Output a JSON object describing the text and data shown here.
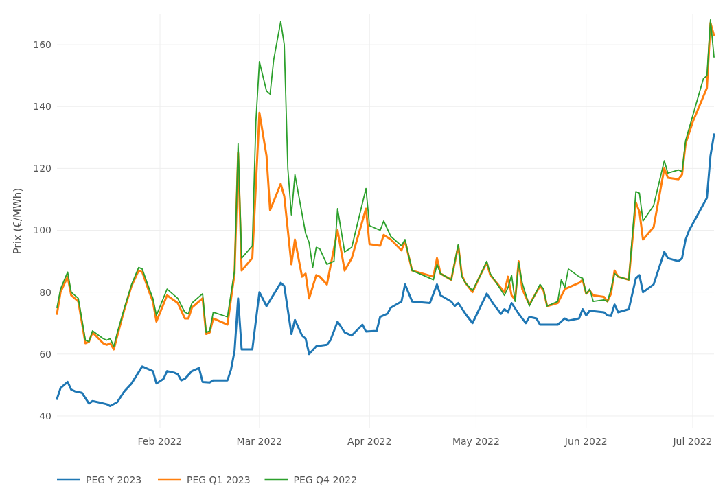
{
  "chart_data": {
    "type": "line",
    "ylabel": "Prix (€/MWh)",
    "xlim": [
      "2022-01-03",
      "2022-07-07"
    ],
    "ylim": [
      36,
      170
    ],
    "xticks": [
      {
        "value": "2022-02-01",
        "label": "Feb 2022"
      },
      {
        "value": "2022-03-01",
        "label": "Mar 2022"
      },
      {
        "value": "2022-04-01",
        "label": "Apr 2022"
      },
      {
        "value": "2022-05-01",
        "label": "May 2022"
      },
      {
        "value": "2022-06-01",
        "label": "Jun 2022"
      },
      {
        "value": "2022-07-01",
        "label": "Jul 2022"
      }
    ],
    "yticks": [
      40,
      60,
      80,
      100,
      120,
      140,
      160
    ],
    "grid": true,
    "legend": "bottom",
    "line_style": "solid",
    "marker": "none",
    "series": [
      {
        "name": "PEG Y 2023",
        "color": "#1f77b4",
        "x": [
          "2022-01-03",
          "2022-01-04",
          "2022-01-06",
          "2022-01-07",
          "2022-01-08",
          "2022-01-10",
          "2022-01-12",
          "2022-01-13",
          "2022-01-15",
          "2022-01-17",
          "2022-01-18",
          "2022-01-20",
          "2022-01-22",
          "2022-01-24",
          "2022-01-27",
          "2022-01-29",
          "2022-01-30",
          "2022-01-31",
          "2022-02-02",
          "2022-02-03",
          "2022-02-05",
          "2022-02-06",
          "2022-02-07",
          "2022-02-08",
          "2022-02-10",
          "2022-02-12",
          "2022-02-13",
          "2022-02-15",
          "2022-02-16",
          "2022-02-20",
          "2022-02-21",
          "2022-02-22",
          "2022-02-23",
          "2022-02-24",
          "2022-02-27",
          "2022-03-01",
          "2022-03-03",
          "2022-03-07",
          "2022-03-08",
          "2022-03-10",
          "2022-03-11",
          "2022-03-13",
          "2022-03-14",
          "2022-03-15",
          "2022-03-17",
          "2022-03-20",
          "2022-03-21",
          "2022-03-23",
          "2022-03-25",
          "2022-03-27",
          "2022-03-30",
          "2022-03-31",
          "2022-04-03",
          "2022-04-04",
          "2022-04-06",
          "2022-04-07",
          "2022-04-10",
          "2022-04-11",
          "2022-04-13",
          "2022-04-18",
          "2022-04-20",
          "2022-04-21",
          "2022-04-24",
          "2022-04-25",
          "2022-04-26",
          "2022-04-28",
          "2022-04-30",
          "2022-05-04",
          "2022-05-06",
          "2022-05-08",
          "2022-05-09",
          "2022-05-10",
          "2022-05-11",
          "2022-05-13",
          "2022-05-15",
          "2022-05-16",
          "2022-05-18",
          "2022-05-19",
          "2022-05-24",
          "2022-05-26",
          "2022-05-27",
          "2022-05-30",
          "2022-05-31",
          "2022-06-01",
          "2022-06-02",
          "2022-06-06",
          "2022-06-07",
          "2022-06-08",
          "2022-06-09",
          "2022-06-10",
          "2022-06-13",
          "2022-06-15",
          "2022-06-16",
          "2022-06-17",
          "2022-06-20",
          "2022-06-23",
          "2022-06-24",
          "2022-06-27",
          "2022-06-28",
          "2022-06-29",
          "2022-06-30",
          "2022-07-05",
          "2022-07-06",
          "2022-07-07"
        ],
        "values": [
          45.5,
          49,
          51,
          48.5,
          48,
          47.5,
          44,
          44.8,
          44.3,
          43.8,
          43.2,
          44.5,
          48,
          50.5,
          56,
          55,
          54.5,
          50.5,
          52,
          54.5,
          54,
          53.5,
          51.5,
          52,
          54.5,
          55.5,
          51,
          50.8,
          51.5,
          51.5,
          55,
          61,
          78,
          61.5,
          61.5,
          80,
          75.5,
          83,
          82,
          66.5,
          71,
          66,
          65,
          60,
          62.5,
          63,
          64.5,
          70.5,
          67,
          66,
          69.5,
          67.3,
          67.5,
          72,
          73,
          75,
          77,
          82.5,
          77,
          76.5,
          82.5,
          79,
          77,
          75.5,
          76.5,
          73,
          70,
          79.5,
          76,
          73,
          74.5,
          73.5,
          76.5,
          73,
          70,
          72,
          71.5,
          69.5,
          69.5,
          71.5,
          70.8,
          71.5,
          74.5,
          72.5,
          74,
          73.5,
          72.5,
          72.3,
          76,
          73.5,
          74.5,
          84.5,
          85.5,
          80,
          82.5,
          93,
          91,
          90,
          91,
          97,
          100,
          110.5,
          124,
          131
        ]
      },
      {
        "name": "PEG Q1 2023",
        "color": "#ff7f0e",
        "x": [
          "2022-01-03",
          "2022-01-04",
          "2022-01-06",
          "2022-01-07",
          "2022-01-09",
          "2022-01-11",
          "2022-01-12",
          "2022-01-13",
          "2022-01-16",
          "2022-01-17",
          "2022-01-18",
          "2022-01-19",
          "2022-01-20",
          "2022-01-22",
          "2022-01-24",
          "2022-01-26",
          "2022-01-27",
          "2022-01-29",
          "2022-01-30",
          "2022-01-31",
          "2022-02-03",
          "2022-02-06",
          "2022-02-08",
          "2022-02-09",
          "2022-02-10",
          "2022-02-13",
          "2022-02-14",
          "2022-02-15",
          "2022-02-16",
          "2022-02-20",
          "2022-02-22",
          "2022-02-23",
          "2022-02-24",
          "2022-02-27",
          "2022-03-01",
          "2022-03-03",
          "2022-03-04",
          "2022-03-07",
          "2022-03-08",
          "2022-03-10",
          "2022-03-11",
          "2022-03-13",
          "2022-03-14",
          "2022-03-15",
          "2022-03-17",
          "2022-03-18",
          "2022-03-20",
          "2022-03-23",
          "2022-03-25",
          "2022-03-27",
          "2022-03-31",
          "2022-04-01",
          "2022-04-04",
          "2022-04-05",
          "2022-04-07",
          "2022-04-10",
          "2022-04-11",
          "2022-04-13",
          "2022-04-19",
          "2022-04-20",
          "2022-04-21",
          "2022-04-24",
          "2022-04-26",
          "2022-04-27",
          "2022-04-28",
          "2022-04-30",
          "2022-05-02",
          "2022-05-04",
          "2022-05-05",
          "2022-05-09",
          "2022-05-10",
          "2022-05-11",
          "2022-05-12",
          "2022-05-13",
          "2022-05-14",
          "2022-05-16",
          "2022-05-19",
          "2022-05-20",
          "2022-05-21",
          "2022-05-24",
          "2022-05-26",
          "2022-05-27",
          "2022-05-30",
          "2022-05-31",
          "2022-06-01",
          "2022-06-02",
          "2022-06-03",
          "2022-06-06",
          "2022-06-07",
          "2022-06-08",
          "2022-06-09",
          "2022-06-10",
          "2022-06-13",
          "2022-06-15",
          "2022-06-16",
          "2022-06-17",
          "2022-06-20",
          "2022-06-23",
          "2022-06-24",
          "2022-06-27",
          "2022-06-28",
          "2022-06-29",
          "2022-07-01",
          "2022-07-05",
          "2022-07-06",
          "2022-07-07"
        ],
        "values": [
          73,
          80,
          85,
          79,
          77,
          63.5,
          64,
          67,
          63.5,
          63,
          63.5,
          61.5,
          66,
          74.5,
          82,
          87,
          86.5,
          80,
          77,
          70.5,
          79,
          76.5,
          71.5,
          71.5,
          75,
          78,
          66.5,
          67,
          71.5,
          69.5,
          86,
          125,
          87,
          91,
          138,
          124,
          106.5,
          115,
          111,
          89,
          97,
          85,
          86,
          78,
          85.5,
          85,
          82.5,
          100,
          87,
          91,
          107,
          95.5,
          95,
          98.5,
          97,
          93.5,
          96.5,
          87,
          85,
          91,
          86,
          84,
          95,
          85.5,
          83,
          80,
          85,
          89.5,
          85.5,
          80,
          85,
          79,
          77.5,
          90,
          81,
          76,
          82,
          80.5,
          75.5,
          76.5,
          81,
          81.5,
          83,
          84,
          79.5,
          80.5,
          79,
          78.5,
          77,
          79.5,
          87,
          85,
          84,
          109,
          106,
          97,
          101,
          120,
          117,
          116.5,
          118,
          128,
          135,
          146,
          167,
          163
        ]
      },
      {
        "name": "PEG Q4 2022",
        "color": "#2ca02c",
        "x": [
          "2022-01-03",
          "2022-01-04",
          "2022-01-06",
          "2022-01-07",
          "2022-01-09",
          "2022-01-11",
          "2022-01-12",
          "2022-01-13",
          "2022-01-16",
          "2022-01-17",
          "2022-01-18",
          "2022-01-19",
          "2022-01-20",
          "2022-01-22",
          "2022-01-24",
          "2022-01-26",
          "2022-01-27",
          "2022-01-29",
          "2022-01-30",
          "2022-01-31",
          "2022-02-03",
          "2022-02-06",
          "2022-02-08",
          "2022-02-09",
          "2022-02-10",
          "2022-02-13",
          "2022-02-14",
          "2022-02-15",
          "2022-02-16",
          "2022-02-20",
          "2022-02-22",
          "2022-02-23",
          "2022-02-24",
          "2022-02-27",
          "2022-02-28",
          "2022-03-01",
          "2022-03-03",
          "2022-03-04",
          "2022-03-05",
          "2022-03-07",
          "2022-03-08",
          "2022-03-09",
          "2022-03-10",
          "2022-03-11",
          "2022-03-14",
          "2022-03-15",
          "2022-03-16",
          "2022-03-17",
          "2022-03-18",
          "2022-03-20",
          "2022-03-22",
          "2022-03-23",
          "2022-03-25",
          "2022-03-27",
          "2022-03-31",
          "2022-04-01",
          "2022-04-04",
          "2022-04-05",
          "2022-04-07",
          "2022-04-10",
          "2022-04-11",
          "2022-04-13",
          "2022-04-19",
          "2022-04-20",
          "2022-04-21",
          "2022-04-24",
          "2022-04-26",
          "2022-04-27",
          "2022-04-28",
          "2022-04-30",
          "2022-05-02",
          "2022-05-04",
          "2022-05-05",
          "2022-05-09",
          "2022-05-10",
          "2022-05-11",
          "2022-05-12",
          "2022-05-13",
          "2022-05-14",
          "2022-05-16",
          "2022-05-19",
          "2022-05-20",
          "2022-05-21",
          "2022-05-24",
          "2022-05-25",
          "2022-05-26",
          "2022-05-27",
          "2022-05-30",
          "2022-05-31",
          "2022-06-01",
          "2022-06-02",
          "2022-06-03",
          "2022-06-06",
          "2022-06-07",
          "2022-06-08",
          "2022-06-09",
          "2022-06-10",
          "2022-06-13",
          "2022-06-15",
          "2022-06-16",
          "2022-06-17",
          "2022-06-20",
          "2022-06-23",
          "2022-06-24",
          "2022-06-27",
          "2022-06-28",
          "2022-06-29",
          "2022-07-01",
          "2022-07-04",
          "2022-07-05",
          "2022-07-06",
          "2022-07-07"
        ],
        "values": [
          75,
          81,
          86.5,
          80,
          78,
          64.5,
          64,
          67.5,
          65,
          64.5,
          65,
          62.5,
          67,
          75,
          82.5,
          88,
          87.5,
          81,
          78,
          72.5,
          81,
          78,
          73.5,
          73,
          76.5,
          79.5,
          67,
          67.5,
          73.5,
          72,
          87,
          128,
          91,
          95,
          135,
          154.5,
          145,
          144,
          155,
          167.5,
          160,
          120,
          105,
          118,
          99,
          96,
          88,
          94.5,
          94,
          89,
          90,
          107,
          93,
          94.5,
          113.5,
          101.5,
          100,
          103,
          98,
          95,
          97,
          87,
          84,
          89,
          86,
          84,
          95.5,
          85,
          83,
          80.5,
          85,
          90,
          86,
          79,
          81.5,
          85.5,
          77,
          89.5,
          83,
          75.5,
          82.5,
          81,
          75.5,
          77,
          84,
          81.5,
          87.5,
          85,
          84.5,
          79.5,
          81,
          77,
          77.5,
          77,
          81,
          86,
          85,
          84,
          112.5,
          112,
          103,
          108,
          122.5,
          118.5,
          119.5,
          119,
          129,
          137,
          149,
          150,
          168,
          156
        ]
      }
    ]
  }
}
